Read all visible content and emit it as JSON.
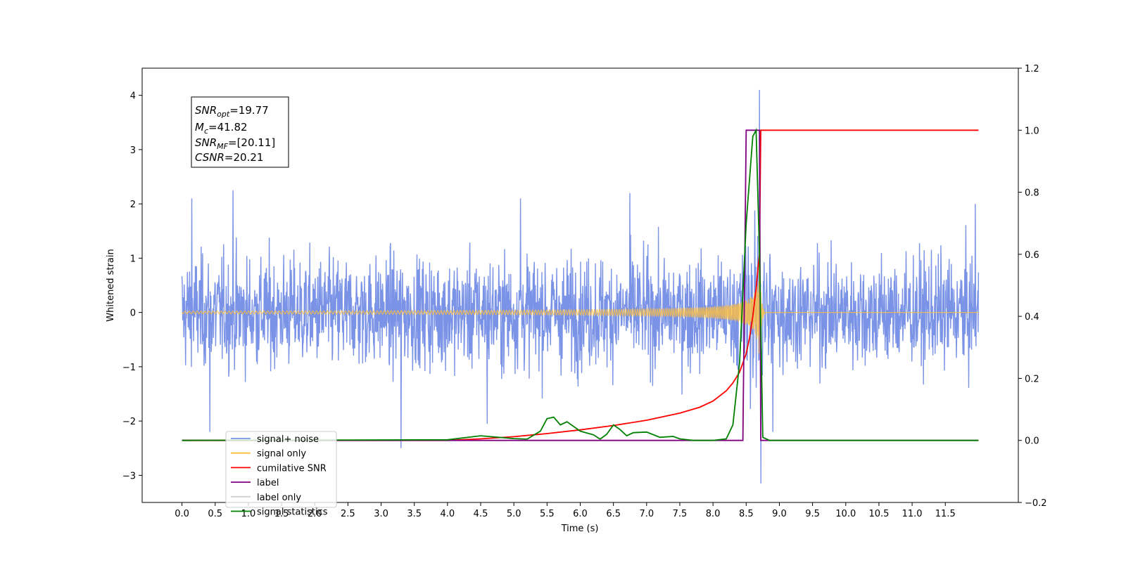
{
  "chart_data": {
    "type": "line",
    "xlabel": "Time (s)",
    "ylabel": "Whitened strain",
    "xlim": [
      -0.6,
      12.6
    ],
    "ylim": [
      -3.5,
      4.5
    ],
    "y2lim": [
      -0.2,
      1.2
    ],
    "x_ticks": [
      "0.0",
      "0.5",
      "1.0",
      "1.5",
      "2.0",
      "2.5",
      "3.0",
      "3.5",
      "4.0",
      "4.5",
      "5.0",
      "5.5",
      "6.0",
      "6.5",
      "7.0",
      "7.5",
      "8.0",
      "8.5",
      "9.0",
      "9.5",
      "10.0",
      "10.5",
      "11.0",
      "11.5"
    ],
    "y_ticks": [
      "−3",
      "−2",
      "−1",
      "0",
      "1",
      "2",
      "3",
      "4"
    ],
    "y2_ticks": [
      "−0.2",
      "0.0",
      "0.2",
      "0.4",
      "0.6",
      "0.8",
      "1.0",
      "1.2"
    ],
    "annotation": [
      {
        "base": "SNR",
        "sub": "opt",
        "value": "=19.77"
      },
      {
        "base": "M",
        "sub": "c",
        "value": "=41.82"
      },
      {
        "base": "SNR",
        "sub": "MF",
        "value": "=[20.11]"
      },
      {
        "base": "CSNR",
        "sub": "",
        "value": "=20.21"
      }
    ],
    "legend_position": "lower-left",
    "series": [
      {
        "name": "signal+ noise",
        "color": "#7a93e6",
        "axis": "left",
        "kind": "noisy strain",
        "x_range": [
          0.0,
          12.0
        ],
        "typical_amplitude": 1.0,
        "peaks": [
          {
            "x": 0.15,
            "y": 2.1
          },
          {
            "x": 0.77,
            "y": 2.25
          },
          {
            "x": 0.42,
            "y": -2.2
          },
          {
            "x": 3.3,
            "y": -2.5
          },
          {
            "x": 4.6,
            "y": -2.05
          },
          {
            "x": 5.1,
            "y": 2.1
          },
          {
            "x": 6.75,
            "y": 2.2
          },
          {
            "x": 8.7,
            "y": 4.1
          },
          {
            "x": 8.72,
            "y": -3.15
          },
          {
            "x": 8.9,
            "y": -2.2
          },
          {
            "x": 11.95,
            "y": 2.0
          }
        ]
      },
      {
        "name": "signal only",
        "color": "#ffbf40",
        "axis": "left",
        "kind": "chirp",
        "x_range": [
          0.0,
          12.0
        ],
        "peak_time": 8.7,
        "peak_amplitude": 0.95
      },
      {
        "name": "cumilative SNR",
        "color": "#ff0000",
        "axis": "right",
        "x": [
          0.0,
          4.0,
          4.5,
          5.0,
          5.5,
          6.0,
          6.5,
          7.0,
          7.5,
          7.8,
          8.0,
          8.2,
          8.3,
          8.4,
          8.5,
          8.55,
          8.6,
          8.65,
          8.68,
          8.7,
          8.72,
          12.0
        ],
        "y": [
          0.0,
          0.0,
          0.005,
          0.012,
          0.022,
          0.034,
          0.048,
          0.065,
          0.088,
          0.107,
          0.127,
          0.16,
          0.185,
          0.22,
          0.28,
          0.33,
          0.4,
          0.49,
          0.56,
          0.6,
          1.0,
          1.0
        ]
      },
      {
        "name": "label",
        "color": "#800080",
        "axis": "right",
        "x": [
          0.0,
          8.45,
          8.5,
          8.7,
          8.72,
          12.0
        ],
        "y": [
          0.0,
          0.0,
          1.0,
          1.0,
          0.0,
          0.0
        ]
      },
      {
        "name": "label only",
        "color": "#d0d0d0",
        "hidden": true,
        "axis": "right",
        "x": [],
        "y": []
      },
      {
        "name": "signal statistics",
        "color": "#008000",
        "axis": "right",
        "x": [
          0.0,
          4.0,
          4.5,
          5.0,
          5.2,
          5.4,
          5.5,
          5.6,
          5.7,
          5.8,
          5.9,
          6.0,
          6.2,
          6.3,
          6.4,
          6.5,
          6.6,
          6.7,
          6.8,
          7.0,
          7.2,
          7.4,
          7.5,
          7.7,
          8.0,
          8.2,
          8.3,
          8.4,
          8.5,
          8.6,
          8.65,
          8.7,
          8.75,
          8.85,
          9.0,
          9.5,
          12.0
        ],
        "y": [
          0.0,
          0.002,
          0.015,
          0.006,
          0.004,
          0.03,
          0.07,
          0.075,
          0.05,
          0.06,
          0.045,
          0.03,
          0.018,
          0.004,
          0.02,
          0.05,
          0.035,
          0.015,
          0.025,
          0.027,
          0.01,
          0.013,
          0.005,
          0.0,
          0.0,
          0.005,
          0.05,
          0.25,
          0.7,
          0.98,
          1.0,
          0.6,
          0.01,
          0.0,
          0.0,
          0.0,
          0.0
        ]
      }
    ]
  }
}
